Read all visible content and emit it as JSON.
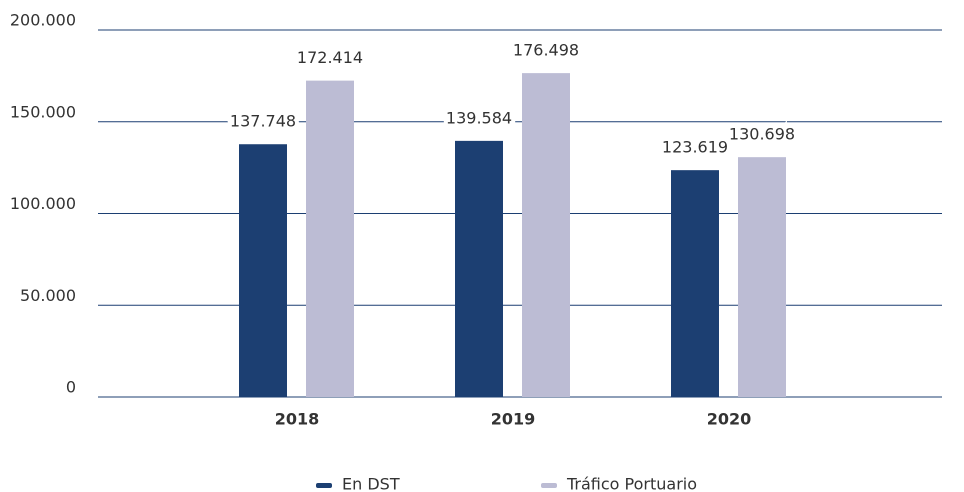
{
  "chart_data": {
    "type": "bar",
    "categories": [
      "2018",
      "2019",
      "2020"
    ],
    "series": [
      {
        "name": "En DST",
        "color": "#1c3f72",
        "values": [
          137748,
          139584,
          123619
        ],
        "value_labels": [
          "137.748",
          "139.584",
          "123.619"
        ]
      },
      {
        "name": "Tráfico Portuario",
        "color": "#bcbcd4",
        "values": [
          172414,
          176498,
          130698
        ],
        "value_labels": [
          "172.414",
          "176.498",
          "130.698"
        ]
      }
    ],
    "ylim": [
      0,
      200000
    ],
    "yticks": [
      0,
      {
        "value": 50000,
        "label": "50.000"
      },
      {
        "value": 100000,
        "label": "100.000"
      },
      {
        "value": 150000,
        "label": "150.000"
      },
      {
        "value": 200000,
        "label": "200.000"
      }
    ],
    "grid": true,
    "legend": "bottom"
  }
}
